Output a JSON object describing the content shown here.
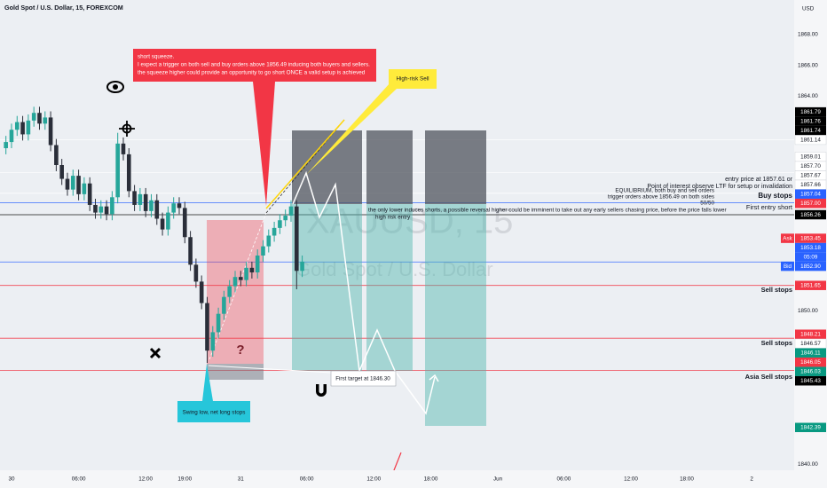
{
  "chart_data": {
    "type": "candlestick",
    "title": "Gold Spot / U.S. Dollar, 15, FOREXCOM",
    "watermark": [
      "XAUUSD, 15",
      "Gold Spot / U.S. Dollar"
    ],
    "currency": "USD",
    "up_color": "#26a69a",
    "down_color": "#2a2e39",
    "xlim": [
      -1.03,
      70
    ],
    "ylim": [
      1839.6,
      1870.26
    ],
    "grid": false,
    "xticks": [
      {
        "value": 0,
        "label": "30"
      },
      {
        "value": 6,
        "label": "06:00"
      },
      {
        "value": 12,
        "label": "12:00"
      },
      {
        "value": 15.5,
        "label": "19:00"
      },
      {
        "value": 20.5,
        "label": "31"
      },
      {
        "value": 26.4,
        "label": "06:00"
      },
      {
        "value": 32.4,
        "label": "12:00"
      },
      {
        "value": 37.5,
        "label": "18:00"
      },
      {
        "value": 43.5,
        "label": "Jun"
      },
      {
        "value": 49.4,
        "label": "06:00"
      },
      {
        "value": 55.4,
        "label": "12:00"
      },
      {
        "value": 60.4,
        "label": "18:00"
      },
      {
        "value": 66.2,
        "label": "2"
      }
    ],
    "yticks": [
      {
        "value": 1868,
        "label": "1868.00"
      },
      {
        "value": 1866,
        "label": "1866.00"
      },
      {
        "value": 1864,
        "label": "1864.00"
      },
      {
        "value": 1850,
        "label": "1850.00"
      },
      {
        "value": 1840,
        "label": "1840.00"
      }
    ],
    "x": [
      -0.5,
      0,
      0.5,
      1,
      1.5,
      2,
      2.5,
      3,
      3.5,
      4,
      4.5,
      5,
      5.5,
      6,
      6.5,
      7,
      7.5,
      8,
      8.5,
      9,
      9.5,
      10,
      10.5,
      11,
      11.5,
      12,
      12.5,
      13,
      13.5,
      14,
      14.5,
      15,
      15.5,
      16,
      16.5,
      17,
      17.5,
      18,
      18.5,
      19,
      19.5,
      20,
      20.5,
      21,
      21.5,
      22,
      22.5,
      23,
      23.5,
      24,
      24.5,
      25,
      25.5,
      26
    ],
    "open": [
      1860.6,
      1861.0,
      1861.8,
      1862.3,
      1861.5,
      1862.4,
      1862.9,
      1862.2,
      1862.6,
      1860.8,
      1859.5,
      1858.6,
      1857.9,
      1858.8,
      1857.6,
      1858.3,
      1856.9,
      1856.4,
      1856.8,
      1856.3,
      1857.4,
      1860.9,
      1860.2,
      1857.8,
      1856.9,
      1857.6,
      1856.5,
      1857.2,
      1856.0,
      1855.3,
      1856.4,
      1857.0,
      1856.7,
      1854.8,
      1853.0,
      1851.9,
      1850.5,
      1847.4,
      1848.6,
      1849.8,
      1850.9,
      1851.6,
      1852.2,
      1852.0,
      1852.8,
      1852.5,
      1853.6,
      1854.2,
      1854.9,
      1855.4,
      1855.9,
      1856.2,
      1856.8,
      1852.6
    ],
    "high": [
      1861.4,
      1862.2,
      1862.7,
      1862.7,
      1862.8,
      1863.3,
      1863.3,
      1863.0,
      1863.0,
      1861.2,
      1859.9,
      1859.0,
      1859.2,
      1859.2,
      1858.7,
      1858.7,
      1857.3,
      1857.2,
      1857.2,
      1857.8,
      1861.6,
      1861.3,
      1860.6,
      1858.2,
      1858.0,
      1858.0,
      1857.6,
      1857.6,
      1856.4,
      1856.8,
      1857.4,
      1857.4,
      1857.1,
      1855.2,
      1853.4,
      1852.3,
      1850.9,
      1849.0,
      1850.2,
      1851.3,
      1852.0,
      1852.6,
      1852.6,
      1853.2,
      1853.2,
      1854.0,
      1854.6,
      1855.3,
      1855.8,
      1856.3,
      1856.6,
      1857.2,
      1857.2,
      1853.6
    ],
    "low": [
      1860.2,
      1860.6,
      1861.4,
      1861.1,
      1861.1,
      1862.0,
      1861.8,
      1861.8,
      1860.4,
      1859.1,
      1858.2,
      1857.5,
      1857.5,
      1857.2,
      1857.2,
      1856.5,
      1856.0,
      1856.0,
      1855.9,
      1855.9,
      1857.0,
      1859.8,
      1857.4,
      1856.5,
      1856.5,
      1856.1,
      1856.1,
      1855.6,
      1854.9,
      1854.9,
      1856.0,
      1856.3,
      1854.4,
      1852.6,
      1851.5,
      1850.1,
      1846.6,
      1847.0,
      1848.2,
      1849.4,
      1850.5,
      1851.2,
      1851.6,
      1851.6,
      1852.1,
      1852.1,
      1853.2,
      1853.8,
      1854.5,
      1855.0,
      1855.5,
      1855.8,
      1851.4,
      1852.2
    ],
    "close": [
      1861.0,
      1861.8,
      1862.3,
      1861.5,
      1862.4,
      1862.9,
      1862.2,
      1862.6,
      1860.8,
      1859.5,
      1858.6,
      1857.9,
      1858.8,
      1857.6,
      1858.3,
      1856.9,
      1856.4,
      1856.8,
      1856.3,
      1857.4,
      1860.9,
      1860.2,
      1857.8,
      1856.9,
      1857.6,
      1856.5,
      1857.2,
      1856.0,
      1855.3,
      1856.4,
      1857.0,
      1856.7,
      1854.8,
      1853.0,
      1851.9,
      1850.5,
      1847.4,
      1848.6,
      1849.8,
      1850.9,
      1851.6,
      1852.2,
      1852.0,
      1852.8,
      1852.5,
      1853.6,
      1854.2,
      1854.9,
      1855.4,
      1855.9,
      1856.2,
      1856.8,
      1852.6,
      1853.2
    ],
    "price_tags": [
      {
        "value": 1861.79,
        "label": "1861.79",
        "color": "#000000"
      },
      {
        "value": 1861.76,
        "label": "1861.76",
        "color": "#000000"
      },
      {
        "value": 1861.74,
        "label": "1861.74",
        "color": "#000000"
      },
      {
        "value": 1861.14,
        "label": "1861.14",
        "color": "#ffffff",
        "line": "#ffffff"
      },
      {
        "value": 1859.01,
        "label": "1859.01",
        "color": "#ffffff",
        "line": "#ffffff"
      },
      {
        "value": 1857.7,
        "label": "1857.70",
        "color": "#ffffff"
      },
      {
        "value": 1857.67,
        "label": "1857.67",
        "color": "#ffffff"
      },
      {
        "value": 1857.66,
        "label": "1857.66",
        "color": "#ffffff",
        "line": "#ffffff"
      },
      {
        "value": 1857.04,
        "label": "1857.04",
        "color": "#2962ff",
        "line": "#2962ff"
      },
      {
        "value": 1857,
        "label": "1857.00",
        "color": "#f23645"
      },
      {
        "value": 1856.26,
        "label": "1856.26",
        "color": "#000000",
        "line": "#000000"
      },
      {
        "value": 1853.45,
        "label": "1853.45",
        "color": "#f23645",
        "tag": "Ask"
      },
      {
        "value": 1853.18,
        "label": "1853.18",
        "color": "#2962ff",
        "line": "#2962ff",
        "countdown": "05:09"
      },
      {
        "value": 1852.9,
        "label": "1852.90",
        "color": "#2962ff",
        "tag": "Bid"
      },
      {
        "value": 1851.65,
        "label": "1851.65",
        "color": "#f23645",
        "line": "#f23645"
      },
      {
        "value": 1848.21,
        "label": "1848.21",
        "color": "#f23645",
        "line": "#f23645"
      },
      {
        "value": 1846.57,
        "label": "1846.57",
        "color": "#ffffff"
      },
      {
        "value": 1846.11,
        "label": "1846.11",
        "color": "#089981",
        "line": "#f23645"
      },
      {
        "value": 1846.05,
        "label": "1846.05",
        "color": "#f23645"
      },
      {
        "value": 1846.03,
        "label": "1846.03",
        "color": "#089981"
      },
      {
        "value": 1845.43,
        "label": "1845.43",
        "color": "#000000"
      },
      {
        "value": 1842.39,
        "label": "1842.39",
        "color": "#089981"
      }
    ],
    "notes": {
      "callout": [
        "short squeeze.",
        "I expect a trigger on both sell and buy orders above 1856.49 inducing both buyers and sellers.",
        "the squeeze higher could provide an opportunity to go short ONCE a valid setup is achieved"
      ],
      "high_risk": "High-risk Sell",
      "swing": "Swing low, net long stops",
      "target": "First target at 1846.30",
      "question": "?",
      "entry": "entry price at 1857.61 or",
      "poi": "Point of interest observe LTF for setup or invalidation",
      "equilibrium": "EQUILIBRIUM, both buy and sell orders",
      "trigger": "trigger orders above 1856.49 on both sides",
      "fifty": "50/50",
      "buy_stops": "Buy stops",
      "first_entry": "First entry short",
      "induce": "the only lower induces shorts, a possible reversal higher could be imminent to take out any early sellers chasing price, before the price falls lower",
      "high_risk_entry": "high risk entry",
      "sell_stops_1": "Sell stops",
      "sell_stops_2": "Sell stops",
      "asia": "Asia Sell stops"
    }
  }
}
